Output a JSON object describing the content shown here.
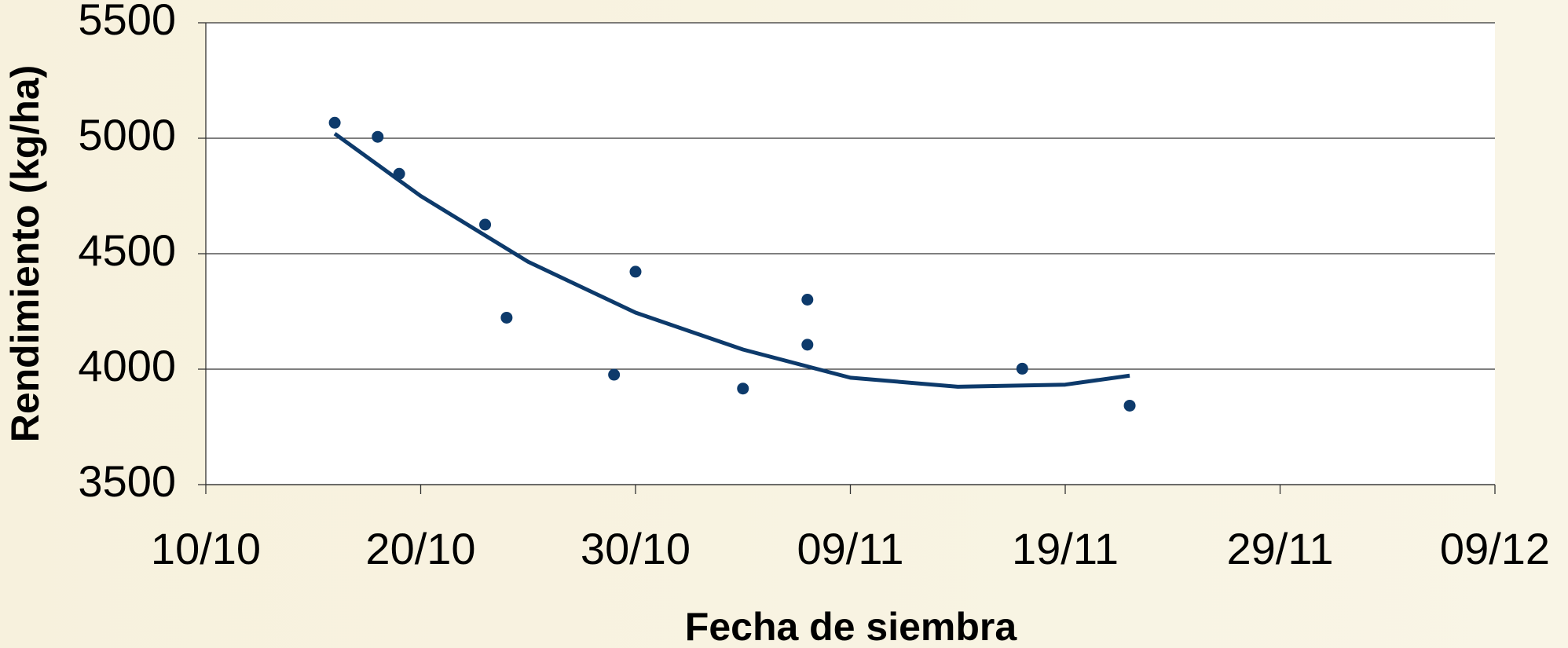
{
  "chart_data": {
    "type": "scatter",
    "xlabel": "Fecha de siembra",
    "ylabel": "Rendimiento (kg/ha)",
    "x": [
      "16/10",
      "18/10",
      "19/10",
      "23/10",
      "24/10",
      "29/10",
      "30/10",
      "04/11",
      "07/11",
      "07/11",
      "17/11",
      "22/11"
    ],
    "values": [
      5067,
      5006,
      4846,
      4626,
      4223,
      3976,
      4422,
      3916,
      4301,
      4106,
      4002,
      3842
    ],
    "color": "#0d3a6b",
    "trendline": {
      "x": [
        "16/10",
        "20/10",
        "25/10",
        "30/10",
        "04/11",
        "09/11",
        "14/11",
        "19/11",
        "22/11"
      ],
      "values": [
        5020,
        4750,
        4465,
        4245,
        4085,
        3963,
        3924,
        3933,
        3972
      ],
      "color": "#0d3a6b"
    },
    "xlim": [
      "10/10",
      "09/12"
    ],
    "xticks": [
      "10/10",
      "20/10",
      "30/10",
      "09/11",
      "19/11",
      "29/11",
      "09/12"
    ],
    "ylim": [
      3500,
      5500
    ],
    "yticks": [
      3500,
      4000,
      4500,
      5000,
      5500
    ],
    "grid": true
  }
}
